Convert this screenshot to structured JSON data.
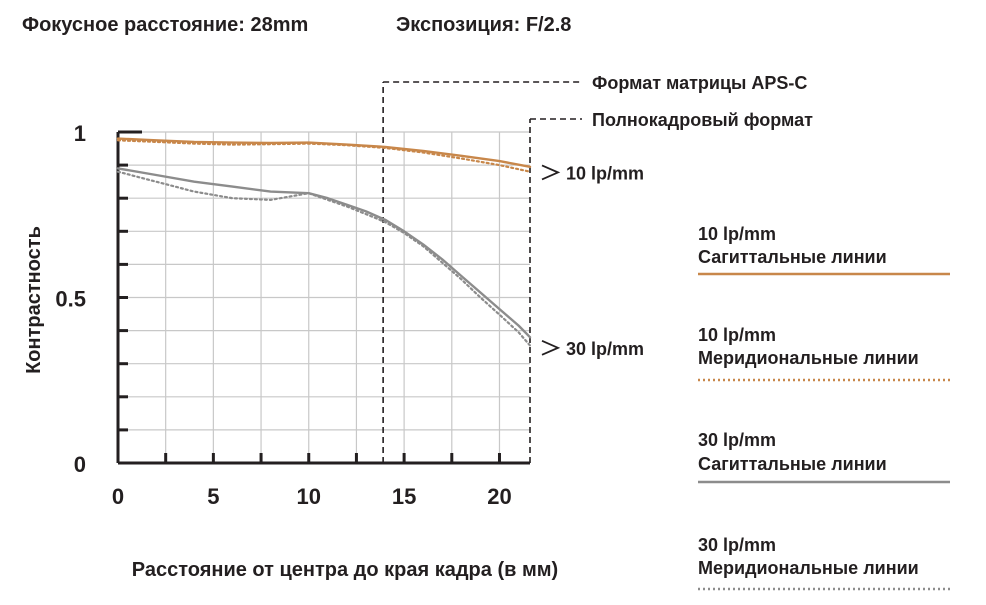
{
  "header": {
    "focal_length": "Фокусное расстояние: 28mm",
    "aperture": "Экспозиция: F/2.8"
  },
  "chart_data": {
    "type": "line",
    "xlabel": "Расстояние от центра до края кадра (в мм)",
    "ylabel": "Контрастность",
    "xlim": [
      0,
      21.6
    ],
    "ylim": [
      0,
      1
    ],
    "x_ticks": [
      "0",
      "5",
      "10",
      "15",
      "20"
    ],
    "x_tick_values": [
      0,
      5,
      10,
      15,
      20
    ],
    "y_ticks": [
      "0",
      "0.5",
      "1"
    ],
    "y_tick_values": [
      0,
      0.5,
      1
    ],
    "grid": true,
    "legend_position": "right",
    "colors": {
      "lp10": "#c8874a",
      "lp30": "#8c8c8c",
      "axis": "#231f20"
    },
    "markers": [
      {
        "label": "Формат матрицы APS-C",
        "x": 13.9
      },
      {
        "label": "Полнокадровый формат",
        "x": 21.6
      }
    ],
    "annotations": [
      {
        "label": "10 lp/mm",
        "y": 0.89
      },
      {
        "label": "30 lp/mm",
        "y": 0.36
      }
    ],
    "series": [
      {
        "name": "10 lp/mm Сагиттальные линии",
        "style": "solid",
        "color": "#c8874a",
        "x": [
          0,
          2,
          4,
          6,
          8,
          10,
          12,
          14,
          16,
          18,
          20,
          21.6
        ],
        "y": [
          0.98,
          0.975,
          0.97,
          0.968,
          0.967,
          0.968,
          0.962,
          0.955,
          0.943,
          0.928,
          0.912,
          0.895
        ]
      },
      {
        "name": "10 lp/mm Меридиональные линии",
        "style": "dotted",
        "color": "#c8874a",
        "x": [
          0,
          2,
          4,
          6,
          8,
          10,
          12,
          14,
          16,
          18,
          20,
          21.6
        ],
        "y": [
          0.975,
          0.97,
          0.965,
          0.962,
          0.963,
          0.965,
          0.96,
          0.952,
          0.938,
          0.92,
          0.9,
          0.88
        ]
      },
      {
        "name": "30 lp/mm Сагиттальные линии",
        "style": "solid",
        "color": "#8c8c8c",
        "x": [
          0,
          2,
          4,
          6,
          8,
          10,
          11,
          12,
          13,
          14,
          15,
          16,
          17,
          18,
          19,
          20,
          21,
          21.6
        ],
        "y": [
          0.89,
          0.87,
          0.85,
          0.835,
          0.82,
          0.815,
          0.8,
          0.78,
          0.76,
          0.735,
          0.7,
          0.66,
          0.615,
          0.565,
          0.515,
          0.465,
          0.415,
          0.38
        ]
      },
      {
        "name": "30 lp/mm Меридиональные линии",
        "style": "dotted",
        "color": "#8c8c8c",
        "x": [
          0,
          2,
          4,
          6,
          8,
          10,
          11,
          12,
          13,
          14,
          15,
          16,
          17,
          18,
          19,
          20,
          21,
          21.6
        ],
        "y": [
          0.88,
          0.85,
          0.82,
          0.8,
          0.795,
          0.815,
          0.795,
          0.775,
          0.752,
          0.728,
          0.695,
          0.655,
          0.605,
          0.555,
          0.5,
          0.448,
          0.395,
          0.355
        ]
      }
    ]
  }
}
